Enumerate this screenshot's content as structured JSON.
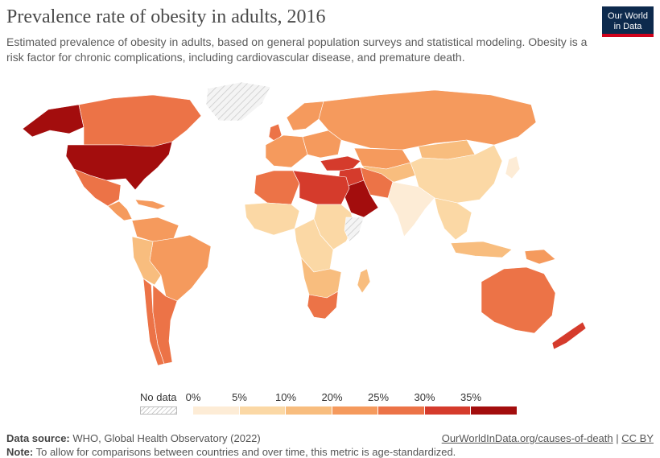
{
  "header": {
    "title": "Prevalence rate of obesity in adults, 2016",
    "subtitle": "Estimated prevalence of obesity in adults, based on general population surveys and statistical modeling. Obesity is a risk factor for chronic complications, including cardiovascular disease, and premature death.",
    "logo_line1": "Our World",
    "logo_line2": "in Data"
  },
  "legend": {
    "no_data_label": "No data",
    "ticks": [
      "0%",
      "5%",
      "10%",
      "20%",
      "25%",
      "30%",
      "35%"
    ],
    "colors": [
      "#fdecd6",
      "#fbd8a5",
      "#f8bd7e",
      "#f59a5d",
      "#ec7347",
      "#d53b2c",
      "#a30d0d"
    ],
    "no_data_color": "#e8e8e8"
  },
  "regions": {
    "usa": "#a30d0d",
    "alaska": "#a30d0d",
    "canada": "#ec7347",
    "mexico": "#ec7347",
    "central_america": "#f59a5d",
    "caribbean": "#f59a5d",
    "greenland": "nodata",
    "brazil": "#f59a5d",
    "south_america_north": "#f59a5d",
    "andes": "#f8bd7e",
    "argentina": "#ec7347",
    "chile": "#ec7347",
    "europe_west": "#f59a5d",
    "europe_east": "#f59a5d",
    "uk": "#ec7347",
    "scandinavia": "#f59a5d",
    "russia": "#f59a5d",
    "kazakhstan": "#f59a5d",
    "turkey": "#d53b2c",
    "north_africa_west": "#ec7347",
    "libya_egypt": "#d53b2c",
    "saudi_arabia": "#a30d0d",
    "iran": "#ec7347",
    "iraq_syria": "#d53b2c",
    "central_asia": "#f8bd7e",
    "west_africa": "#fbd8a5",
    "central_africa": "#fbd8a5",
    "east_africa": "#fbd8a5",
    "somalia": "nodata",
    "south_africa": "#ec7347",
    "southern_africa": "#f8bd7e",
    "india": "#fdecd6",
    "china": "#fbd8a5",
    "mongolia": "#f8bd7e",
    "japan": "#fdecd6",
    "southeast_asia": "#fbd8a5",
    "indonesia": "#f8bd7e",
    "png": "#f59a5d",
    "australia": "#ec7347",
    "new_zealand": "#d53b2c"
  },
  "footer": {
    "source_label": "Data source:",
    "source_text": "WHO, Global Health Observatory (2022)",
    "link_text": "OurWorldInData.org/causes-of-death",
    "separator": "|",
    "license": "CC BY",
    "note_label": "Note:",
    "note_text": "To allow for comparisons between countries and over time, this metric is age-standardized."
  }
}
